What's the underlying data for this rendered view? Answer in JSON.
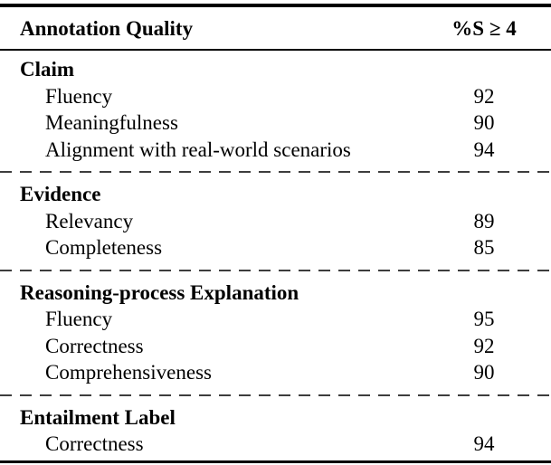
{
  "table": {
    "header": {
      "col1": "Annotation Quality",
      "col2": "%S ≥ 4"
    },
    "sections": [
      {
        "title": "Claim",
        "rows": [
          {
            "label": "Fluency",
            "value": "92"
          },
          {
            "label": "Meaningfulness",
            "value": "90"
          },
          {
            "label": "Alignment with real-world scenarios",
            "value": "94"
          }
        ]
      },
      {
        "title": "Evidence",
        "rows": [
          {
            "label": "Relevancy",
            "value": "89"
          },
          {
            "label": "Completeness",
            "value": "85"
          }
        ]
      },
      {
        "title": "Reasoning-process Explanation",
        "rows": [
          {
            "label": "Fluency",
            "value": "95"
          },
          {
            "label": "Correctness",
            "value": "92"
          },
          {
            "label": "Comprehensiveness",
            "value": "90"
          }
        ]
      },
      {
        "title": "Entailment Label",
        "rows": [
          {
            "label": "Correctness",
            "value": "94"
          }
        ]
      }
    ],
    "colors": {
      "text": "#000000",
      "rule": "#000000",
      "dashed_divider": "#3d3d3d",
      "background": "#ffffff"
    }
  }
}
